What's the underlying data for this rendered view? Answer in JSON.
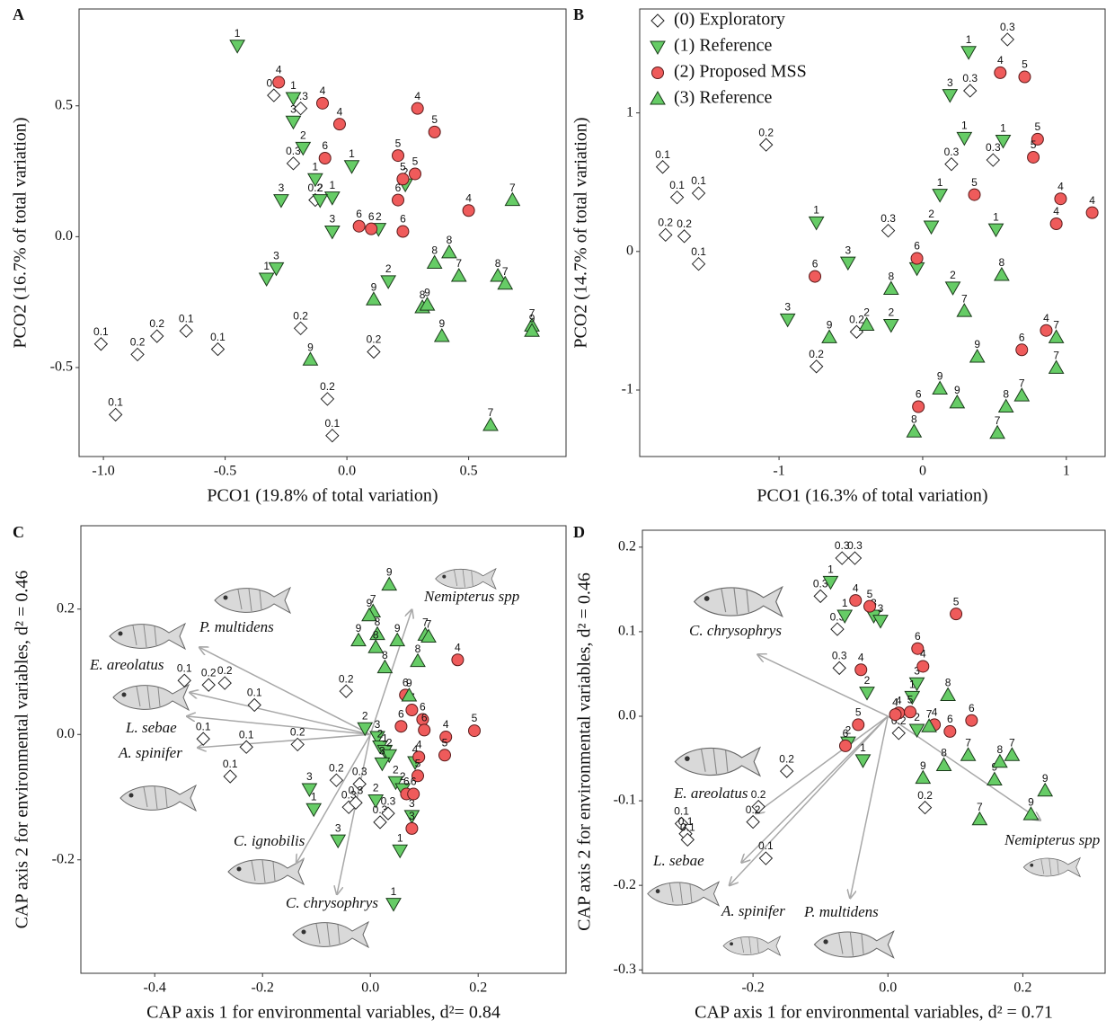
{
  "chart_data": [
    {
      "type": "scatter",
      "panel": "A",
      "xlabel": "PCO1 (19.8% of total variation)",
      "ylabel": "PCO2 (16.7% of total variation)",
      "xlim": [
        -1.1,
        0.9
      ],
      "ylim": [
        -0.84,
        0.87
      ],
      "xticks": [
        {
          "value": -1,
          "label": "-1.0"
        },
        -0.5,
        {
          "value": 0,
          "label": "0.0"
        },
        0.5
      ],
      "yticks": [
        0.5,
        {
          "value": 0,
          "label": "0.0"
        },
        -0.5
      ],
      "series": [
        {
          "marker": "diamond",
          "color": "#ffffff",
          "x": [
            -1.01,
            -0.86,
            -0.78,
            -0.66,
            -0.53,
            -0.95,
            -0.19,
            0.11,
            -0.08,
            -0.06,
            -0.3,
            -0.19,
            -0.22,
            -0.13
          ],
          "y": [
            -0.41,
            -0.45,
            -0.38,
            -0.36,
            -0.43,
            -0.68,
            -0.35,
            -0.44,
            -0.62,
            -0.76,
            0.54,
            0.49,
            0.28,
            0.14
          ],
          "labels": [
            "0.1",
            "0.2",
            "0.2",
            "0.1",
            "0.1",
            "0.1",
            "0.2",
            "0.2",
            "0.2",
            "0.1",
            "0.3",
            "0.3",
            "0.3",
            "0.2"
          ]
        },
        {
          "marker": "triangle-down",
          "color": "#66cc66",
          "x": [
            -0.45,
            -0.22,
            -0.22,
            -0.18,
            -0.13,
            -0.06,
            -0.27,
            -0.11,
            0.02,
            -0.06,
            0.13,
            -0.29,
            -0.33,
            0.17,
            0.24
          ],
          "y": [
            0.73,
            0.53,
            0.44,
            0.34,
            0.22,
            0.15,
            0.14,
            0.14,
            0.27,
            0.02,
            0.03,
            -0.12,
            -0.16,
            -0.17,
            0.2
          ],
          "labels": [
            "1",
            "1",
            "3",
            "2",
            "1",
            "1",
            "3",
            "2",
            "1",
            "3",
            "2",
            "3",
            "1",
            "2",
            "2"
          ]
        },
        {
          "marker": "circle",
          "color": "#ef5b5b",
          "x": [
            -0.28,
            -0.1,
            -0.03,
            0.29,
            0.36,
            0.21,
            -0.09,
            0.23,
            0.28,
            0.21,
            0.5,
            0.05,
            0.1,
            0.23
          ],
          "y": [
            0.59,
            0.51,
            0.43,
            0.49,
            0.4,
            0.31,
            0.3,
            0.22,
            0.24,
            0.14,
            0.1,
            0.04,
            0.03,
            0.02
          ],
          "labels": [
            "4",
            "4",
            "4",
            "4",
            "5",
            "5",
            "6",
            "5",
            "5",
            "6",
            "4",
            "6",
            "6",
            "6"
          ]
        },
        {
          "marker": "triangle-up",
          "color": "#66cc66",
          "x": [
            0.68,
            0.36,
            0.42,
            0.46,
            0.62,
            0.65,
            0.11,
            0.31,
            0.33,
            0.39,
            0.76,
            0.76,
            -0.15,
            0.59
          ],
          "y": [
            0.14,
            -0.1,
            -0.06,
            -0.15,
            -0.15,
            -0.18,
            -0.24,
            -0.27,
            -0.26,
            -0.38,
            -0.34,
            -0.36,
            -0.47,
            -0.72
          ],
          "labels": [
            "7",
            "8",
            "8",
            "7",
            "8",
            "7",
            "9",
            "8",
            "9",
            "9",
            "7",
            "9",
            "9",
            "7"
          ]
        }
      ]
    },
    {
      "type": "scatter",
      "panel": "B",
      "xlabel": "PCO1 (16.3% of total variation)",
      "ylabel": "PCO2 (14.7% of total variation)",
      "xlim": [
        -1.97,
        1.27
      ],
      "ylim": [
        -1.48,
        1.75
      ],
      "xticks": [
        -1,
        0,
        1
      ],
      "yticks": [
        1,
        0,
        -1
      ],
      "legend": "top-left",
      "series": [
        {
          "name": "(0) Exploratory",
          "marker": "diamond",
          "color": "#ffffff",
          "x": [
            -1.81,
            -1.71,
            -1.56,
            -1.79,
            -1.66,
            -1.56,
            -1.09,
            -0.24,
            0.59,
            0.33,
            0.2,
            0.49,
            -0.46,
            -0.74
          ],
          "y": [
            0.61,
            0.39,
            0.42,
            0.12,
            0.11,
            -0.09,
            0.77,
            0.15,
            1.53,
            1.16,
            0.63,
            0.66,
            -0.58,
            -0.83
          ],
          "labels": [
            "0.1",
            "0.1",
            "0.1",
            "0.2",
            "0.2",
            "0.1",
            "0.2",
            "0.3",
            "0.3",
            "0.3",
            "0.3",
            "0.3",
            "0.2",
            "0.2"
          ]
        },
        {
          "name": "(1) Reference",
          "marker": "triangle-down",
          "color": "#66cc66",
          "x": [
            0.32,
            0.19,
            0.29,
            0.56,
            0.12,
            0.06,
            0.51,
            -0.74,
            -0.52,
            -0.04,
            0.21,
            -0.22,
            -0.94
          ],
          "y": [
            1.44,
            1.13,
            0.82,
            0.8,
            0.41,
            0.18,
            0.16,
            0.21,
            -0.08,
            -0.12,
            -0.26,
            -0.53,
            -0.49
          ],
          "labels": [
            "1",
            "3",
            "1",
            "1",
            "1",
            "2",
            "1",
            "1",
            "3",
            null,
            "2",
            "2",
            "3"
          ]
        },
        {
          "name": "(2) Proposed MSS",
          "marker": "circle",
          "color": "#ef5b5b",
          "x": [
            0.54,
            0.71,
            0.8,
            0.77,
            0.36,
            0.96,
            0.93,
            1.18,
            -0.04,
            -0.75,
            0.69,
            0.86,
            -0.03
          ],
          "y": [
            1.29,
            1.26,
            0.81,
            0.68,
            0.41,
            0.38,
            0.2,
            0.28,
            -0.05,
            -0.18,
            -0.71,
            -0.57,
            -1.12
          ],
          "labels": [
            "4",
            "5",
            "5",
            "5",
            "5",
            "4",
            "4",
            "4",
            "6",
            "6",
            "6",
            "4",
            "6"
          ]
        },
        {
          "name": "(3) Reference",
          "marker": "triangle-up",
          "color": "#66cc66",
          "x": [
            0.55,
            -0.22,
            0.29,
            -0.39,
            -0.65,
            0.38,
            0.93,
            0.93,
            0.69,
            0.58,
            0.12,
            0.24,
            -0.06,
            0.52
          ],
          "y": [
            -0.17,
            -0.27,
            -0.43,
            -0.53,
            -0.62,
            -0.76,
            -0.62,
            -0.84,
            -1.04,
            -1.12,
            -0.99,
            -1.09,
            -1.3,
            -1.31
          ],
          "labels": [
            "8",
            "8",
            "7",
            "2",
            "9",
            "9",
            "7",
            "7",
            "7",
            "8",
            "9",
            "9",
            "8",
            "7"
          ]
        }
      ]
    },
    {
      "type": "scatter",
      "panel": "C",
      "xlabel": "CAP axis 1 for environmental variables, d²= 0.84",
      "ylabel": "CAP axis 2 for environmental variables, d² = 0.46",
      "xlim": [
        -0.537,
        0.363
      ],
      "ylim": [
        -0.381,
        0.333
      ],
      "xticks": [
        -0.4,
        -0.2,
        {
          "value": 0,
          "label": "0.0"
        },
        0.2
      ],
      "yticks": [
        0.2,
        {
          "value": 0,
          "label": "0.0"
        },
        -0.2
      ],
      "series": [
        {
          "marker": "diamond",
          "color": "#ffffff",
          "x": [
            -0.345,
            -0.3,
            -0.27,
            -0.215,
            -0.31,
            -0.23,
            -0.26,
            -0.135,
            -0.045,
            -0.063,
            -0.02,
            -0.04,
            -0.027,
            0.018,
            0.033
          ],
          "y": [
            0.086,
            0.079,
            0.082,
            0.047,
            -0.007,
            -0.02,
            -0.067,
            -0.016,
            0.069,
            -0.073,
            -0.079,
            -0.116,
            -0.109,
            -0.14,
            -0.126
          ],
          "labels": [
            "0.1",
            "0.2",
            "0.2",
            "0.1",
            "0.1",
            "0.1",
            "0.1",
            "0.2",
            "0.2",
            "0.2",
            "0.3",
            "0.3",
            "0.3",
            "0.3",
            "0.3"
          ]
        },
        {
          "marker": "triangle-down",
          "color": "#66cc66",
          "x": [
            -0.01,
            0.013,
            0.018,
            0.027,
            0.035,
            0.022,
            0.047,
            0.01,
            0.06,
            0.077,
            0.055,
            0.043,
            -0.113,
            -0.105,
            -0.06,
            0.083
          ],
          "y": [
            0.01,
            -0.004,
            -0.019,
            -0.026,
            -0.033,
            -0.046,
            -0.076,
            -0.105,
            -0.087,
            -0.13,
            -0.185,
            -0.27,
            -0.087,
            -0.119,
            -0.169,
            -0.044
          ],
          "labels": [
            "2",
            "3",
            "2",
            "1",
            "2",
            "3",
            "2",
            "2",
            "2",
            "3",
            "1",
            "1",
            "3",
            "1",
            "3",
            "4"
          ]
        },
        {
          "marker": "circle",
          "color": "#ef5b5b",
          "x": [
            0.162,
            0.065,
            0.077,
            0.057,
            0.097,
            0.1,
            0.14,
            0.193,
            0.138,
            0.09,
            0.088,
            0.067,
            0.08,
            0.077
          ],
          "y": [
            0.119,
            0.063,
            0.039,
            0.013,
            0.024,
            0.007,
            -0.004,
            0.006,
            -0.033,
            -0.036,
            -0.066,
            -0.095,
            -0.095,
            -0.15
          ],
          "labels": [
            "4",
            "6",
            "7",
            "6",
            "6",
            "6",
            "4",
            "5",
            "5",
            "4",
            "5",
            "6",
            "6",
            "3"
          ]
        },
        {
          "marker": "triangle-up",
          "color": "#66cc66",
          "x": [
            0.035,
            0.005,
            -0.002,
            -0.022,
            0.013,
            0.01,
            0.05,
            0.102,
            0.108,
            0.088,
            0.027,
            0.072
          ],
          "y": [
            0.239,
            0.196,
            0.19,
            0.15,
            0.16,
            0.139,
            0.15,
            0.159,
            0.156,
            0.117,
            0.107,
            0.062
          ],
          "labels": [
            "9",
            "7",
            "9",
            "9",
            "8",
            "8",
            "9",
            "7",
            "7",
            "8",
            "8",
            "9"
          ]
        }
      ],
      "arrows": [
        {
          "label": "P. multidens",
          "x": -0.317,
          "y": 0.139
        },
        {
          "label": "E. areolatus",
          "x": -0.335,
          "y": 0.067
        },
        {
          "label": "L. sebae",
          "x": -0.34,
          "y": 0.029
        },
        {
          "label": "A. spinifer",
          "x": -0.32,
          "y": -0.021
        },
        {
          "label": "C. ignobilis",
          "x": -0.137,
          "y": -0.205
        },
        {
          "label": "C. chrysophrys",
          "x": -0.062,
          "y": -0.255
        },
        {
          "label": "Nemipterus spp",
          "x": 0.077,
          "y": 0.199
        }
      ]
    },
    {
      "type": "scatter",
      "panel": "D",
      "xlabel": "CAP axis 1 for environmental variables, d² = 0.71",
      "ylabel": "CAP axis 2 for environmental variables, d² = 0.46",
      "xlim": [
        -0.364,
        0.322
      ],
      "ylim": [
        -0.304,
        0.22
      ],
      "xticks": [
        -0.2,
        {
          "value": 0,
          "label": "0.0"
        },
        0.2
      ],
      "yticks": [
        0.2,
        0.1,
        {
          "value": 0,
          "label": "0.0"
        },
        -0.1,
        -0.2,
        -0.3
      ],
      "series": [
        {
          "marker": "diamond",
          "color": "#ffffff",
          "x": [
            -0.068,
            -0.049,
            -0.1,
            -0.075,
            -0.072,
            0.016,
            -0.15,
            0.055,
            -0.192,
            -0.2,
            -0.181,
            -0.306,
            -0.3,
            -0.297
          ],
          "y": [
            0.187,
            0.187,
            0.142,
            0.103,
            0.057,
            -0.02,
            -0.065,
            -0.108,
            -0.107,
            -0.125,
            -0.168,
            -0.127,
            -0.139,
            -0.146
          ],
          "labels": [
            "0.3",
            "0.3",
            "0.3",
            "0.3",
            "0.3",
            "0.2",
            "0.2",
            "0.2",
            "0.2",
            "0.2",
            "0.1",
            "0.1",
            "0.1",
            "0.1"
          ]
        },
        {
          "marker": "triangle-down",
          "color": "#66cc66",
          "x": [
            -0.085,
            -0.064,
            -0.021,
            -0.011,
            -0.031,
            0.043,
            0.036,
            0.043,
            -0.059,
            -0.037
          ],
          "y": [
            0.159,
            0.119,
            0.119,
            0.113,
            0.028,
            0.039,
            0.023,
            -0.016,
            -0.031,
            -0.052
          ],
          "labels": [
            "1",
            "1",
            "3",
            "3",
            "2",
            "3",
            "1",
            "2",
            "2",
            "1"
          ]
        },
        {
          "marker": "circle",
          "color": "#ef5b5b",
          "x": [
            -0.048,
            -0.027,
            0.101,
            0.044,
            0.052,
            -0.04,
            -0.044,
            0.016,
            0.033,
            0.069,
            0.092,
            0.124,
            -0.063,
            0.011
          ],
          "y": [
            0.137,
            0.13,
            0.121,
            0.08,
            0.059,
            0.055,
            -0.01,
            0.004,
            0.005,
            -0.01,
            -0.018,
            -0.005,
            -0.035,
            0.002
          ],
          "labels": [
            "4",
            "5",
            "5",
            "6",
            "4",
            "4",
            "5",
            "4",
            "5",
            "4",
            "6",
            "6",
            "6",
            "4"
          ]
        },
        {
          "marker": "triangle-up",
          "color": "#66cc66",
          "x": [
            0.089,
            0.061,
            0.052,
            0.083,
            0.119,
            0.158,
            0.166,
            0.184,
            0.233,
            0.212,
            0.136
          ],
          "y": [
            0.025,
            -0.012,
            -0.073,
            -0.058,
            -0.046,
            -0.075,
            -0.054,
            -0.046,
            -0.088,
            -0.116,
            -0.122
          ],
          "labels": [
            "8",
            "7",
            "9",
            "8",
            "7",
            "9",
            "8",
            "7",
            "9",
            "9",
            "7"
          ]
        }
      ],
      "arrows": [
        {
          "label": "C. chrysophrys",
          "x": -0.193,
          "y": 0.073
        },
        {
          "label": "Nemipterus spp",
          "x": 0.226,
          "y": -0.123
        },
        {
          "label": "E. areolatus",
          "x": -0.196,
          "y": -0.115
        },
        {
          "label": "L. sebae",
          "x": -0.235,
          "y": -0.2
        },
        {
          "label": "A. spinifer",
          "x": -0.217,
          "y": -0.173
        },
        {
          "label": "P. multidens",
          "x": -0.056,
          "y": -0.215
        }
      ]
    }
  ]
}
